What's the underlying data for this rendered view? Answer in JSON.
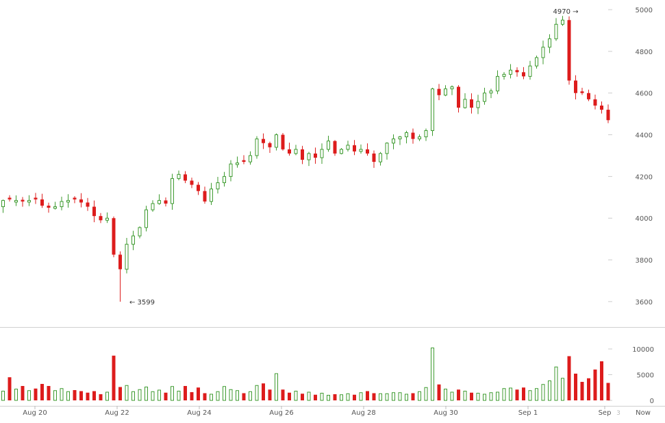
{
  "chart_data": {
    "type": "candlestick",
    "up_color": "#3c9a2e",
    "down_color": "#dd1c1c",
    "price_axis": {
      "ylim": [
        3570,
        5020
      ],
      "ticks": [
        "5000",
        "4800",
        "4600",
        "4400",
        "4200",
        "4000",
        "3800",
        "3600"
      ]
    },
    "volume_axis": {
      "ylim": [
        0,
        13200
      ],
      "ticks": [
        "10000",
        "5000",
        "0"
      ]
    },
    "x_labels": [
      "Aug 20",
      "Aug 22",
      "Aug 24",
      "Aug 26",
      "Aug 28",
      "Aug 30",
      "Sep 1",
      "Sep",
      "3",
      "Now"
    ],
    "annotations": {
      "high": "4970 →",
      "low": "← 3599"
    },
    "high_value": 4970,
    "low_value": 3599,
    "close": [
      4085,
      4090,
      4085,
      4080,
      4085,
      4090,
      4060,
      4050,
      4055,
      4080,
      4085,
      4090,
      4075,
      4055,
      4010,
      3990,
      4000,
      3825,
      3755,
      3875,
      3915,
      3955,
      4040,
      4070,
      4085,
      4070,
      4190,
      4210,
      4180,
      4160,
      4130,
      4080,
      4140,
      4170,
      4200,
      4260,
      4265,
      4270,
      4300,
      4380,
      4360,
      4340,
      4400,
      4330,
      4310,
      4330,
      4280,
      4310,
      4290,
      4330,
      4370,
      4310,
      4330,
      4350,
      4320,
      4330,
      4310,
      4270,
      4310,
      4360,
      4380,
      4390,
      4410,
      4380,
      4390,
      4420,
      4620,
      4590,
      4620,
      4630,
      4530,
      4570,
      4530,
      4560,
      4600,
      4610,
      4680,
      4690,
      4710,
      4700,
      4680,
      4730,
      4770,
      4820,
      4860,
      4930,
      4950,
      4660,
      4600,
      4600,
      4570,
      4540,
      4520,
      4470
    ],
    "volume": [
      1800,
      4500,
      2200,
      2800,
      1900,
      2300,
      3200,
      2800,
      1900,
      2300,
      1700,
      2000,
      1800,
      1500,
      1800,
      1200,
      1600,
      8700,
      2600,
      2900,
      1700,
      2100,
      2600,
      1700,
      2000,
      1500,
      2700,
      1800,
      2800,
      1600,
      2500,
      1400,
      1200,
      1700,
      2700,
      2100,
      1900,
      1400,
      1700,
      2900,
      3300,
      2100,
      5200,
      2100,
      1500,
      1800,
      1300,
      1600,
      1100,
      1400,
      1000,
      1200,
      1100,
      1300,
      1100,
      1500,
      1800,
      1400,
      1300,
      1300,
      1500,
      1500,
      1200,
      1400,
      1700,
      2500,
      10200,
      3100,
      2200,
      1600,
      2100,
      1800,
      1500,
      1400,
      1200,
      1500,
      1600,
      2300,
      2400,
      2100,
      2500,
      1900,
      2300,
      3100,
      3800,
      6500,
      4300,
      8600,
      5200,
      3600,
      4300,
      6000,
      7600,
      3400
    ]
  }
}
